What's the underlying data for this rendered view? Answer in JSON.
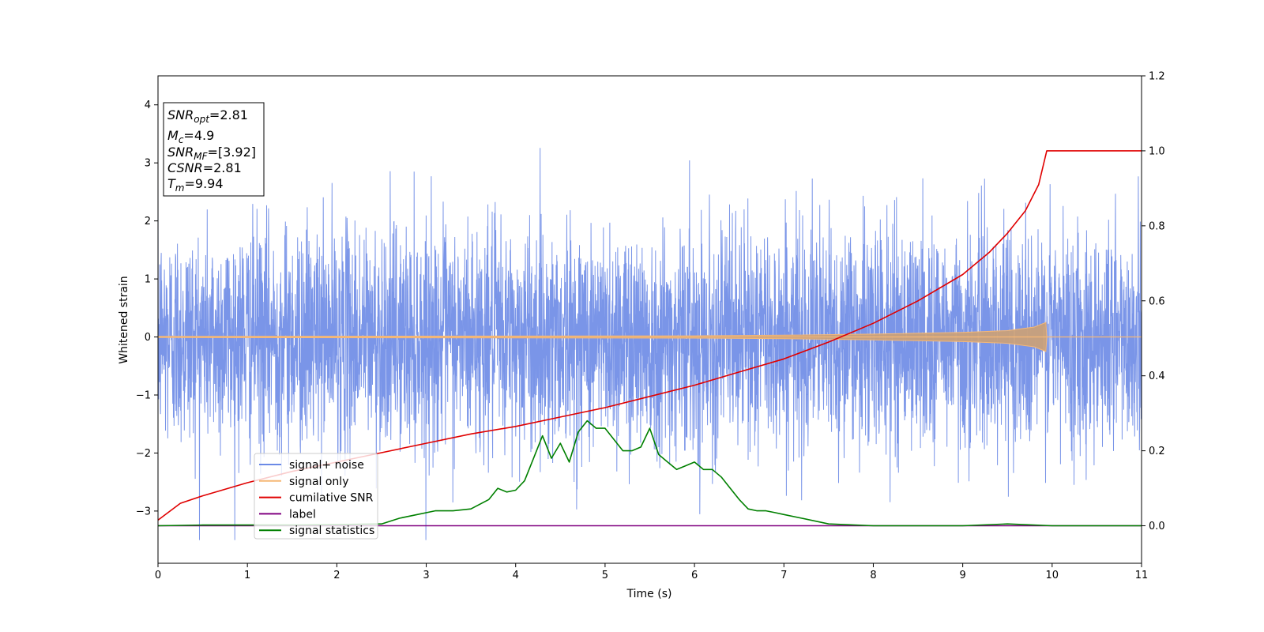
{
  "chart_data": {
    "type": "line",
    "xlabel": "Time (s)",
    "ylabel": "Whitened strain",
    "xlim": [
      0,
      11
    ],
    "ylim_left": [
      -3.9,
      4.5
    ],
    "ylim_right": [
      -0.1,
      1.2
    ],
    "x_ticks": [
      "0",
      "1",
      "2",
      "3",
      "4",
      "5",
      "6",
      "7",
      "8",
      "9",
      "10",
      "11"
    ],
    "y_left_ticks": [
      {
        "value": 4,
        "label": "4"
      },
      {
        "value": 3,
        "label": "3"
      },
      {
        "value": 2,
        "label": "2"
      },
      {
        "value": 1,
        "label": "1"
      },
      {
        "value": 0,
        "label": "0"
      },
      {
        "value": -1,
        "label": "−1"
      },
      {
        "value": -2,
        "label": "−2"
      },
      {
        "value": -3,
        "label": "−3"
      }
    ],
    "y_right_ticks": [
      {
        "value": 1.2,
        "label": "1.2"
      },
      {
        "value": 1.0,
        "label": "1.0"
      },
      {
        "value": 0.8,
        "label": "0.8"
      },
      {
        "value": 0.6,
        "label": "0.6"
      },
      {
        "value": 0.4,
        "label": "0.4"
      },
      {
        "value": 0.2,
        "label": "0.2"
      },
      {
        "value": 0.0,
        "label": "0.0"
      }
    ],
    "grid": false,
    "legend_placement": "lower-left",
    "series": [
      {
        "name": "signal+ noise",
        "axis": "left",
        "color": "#6b8ae6",
        "style": "dense noise, amplitude about ±2 with spikes to about ±4"
      },
      {
        "name": "signal only",
        "axis": "left",
        "color": "#f5b877",
        "envelope": {
          "x": [
            0,
            6,
            7,
            8,
            9,
            9.5,
            9.8,
            9.93,
            9.94,
            11
          ],
          "amplitude": [
            0.01,
            0.02,
            0.03,
            0.05,
            0.08,
            0.11,
            0.17,
            0.25,
            0,
            0
          ]
        }
      },
      {
        "name": "cumilative SNR",
        "axis": "right",
        "color": "#e00000",
        "x": [
          0,
          0.25,
          0.5,
          1,
          1.5,
          2,
          2.5,
          3,
          3.5,
          4,
          4.5,
          5,
          5.5,
          6,
          6.5,
          7,
          7.5,
          8,
          8.5,
          9,
          9.3,
          9.5,
          9.7,
          9.85,
          9.94,
          11
        ],
        "y": [
          0.015,
          0.06,
          0.08,
          0.115,
          0.145,
          0.17,
          0.195,
          0.22,
          0.245,
          0.265,
          0.29,
          0.315,
          0.345,
          0.375,
          0.41,
          0.445,
          0.49,
          0.54,
          0.6,
          0.67,
          0.73,
          0.78,
          0.84,
          0.91,
          1.0,
          1.0
        ]
      },
      {
        "name": "label",
        "axis": "right",
        "color": "#800080",
        "x": [
          0,
          11
        ],
        "y": [
          0,
          0
        ]
      },
      {
        "name": "signal statistics",
        "axis": "right",
        "color": "#008000",
        "x": [
          0,
          0.5,
          1,
          1.5,
          2,
          2.5,
          2.7,
          2.9,
          3.1,
          3.3,
          3.5,
          3.7,
          3.8,
          3.9,
          4.0,
          4.1,
          4.2,
          4.3,
          4.4,
          4.5,
          4.6,
          4.7,
          4.8,
          4.9,
          5.0,
          5.2,
          5.3,
          5.4,
          5.5,
          5.6,
          5.7,
          5.8,
          5.9,
          6.0,
          6.1,
          6.2,
          6.3,
          6.4,
          6.5,
          6.6,
          6.7,
          6.8,
          6.9,
          7.0,
          7.2,
          7.5,
          8.0,
          9.0,
          9.5,
          10,
          11
        ],
        "y": [
          0,
          0.002,
          0.002,
          0.002,
          0.003,
          0.005,
          0.02,
          0.03,
          0.04,
          0.04,
          0.045,
          0.07,
          0.1,
          0.09,
          0.095,
          0.12,
          0.18,
          0.24,
          0.18,
          0.22,
          0.17,
          0.25,
          0.28,
          0.26,
          0.26,
          0.2,
          0.2,
          0.21,
          0.26,
          0.19,
          0.17,
          0.15,
          0.16,
          0.17,
          0.15,
          0.15,
          0.13,
          0.1,
          0.07,
          0.045,
          0.04,
          0.04,
          0.035,
          0.03,
          0.02,
          0.005,
          0,
          0,
          0.005,
          0,
          0
        ]
      }
    ],
    "annotation_box": {
      "snr_opt_label": "SNR",
      "snr_opt_sub": "opt",
      "snr_opt_value": "=2.81",
      "mc_label": "M",
      "mc_sub": "c",
      "mc_value": "=4.9",
      "snr_mf_label": "SNR",
      "snr_mf_sub": "MF",
      "snr_mf_value": "=[3.92]",
      "csnr_label": "CSNR",
      "csnr_value": "=2.81",
      "tm_label": "T",
      "tm_sub": "m",
      "tm_value": "=9.94"
    },
    "legend": [
      {
        "label": "signal+ noise",
        "color": "#6b8ae6"
      },
      {
        "label": "signal only",
        "color": "#f5b877"
      },
      {
        "label": "cumilative SNR",
        "color": "#e00000"
      },
      {
        "label": "label",
        "color": "#800080"
      },
      {
        "label": "signal statistics",
        "color": "#008000"
      }
    ]
  }
}
